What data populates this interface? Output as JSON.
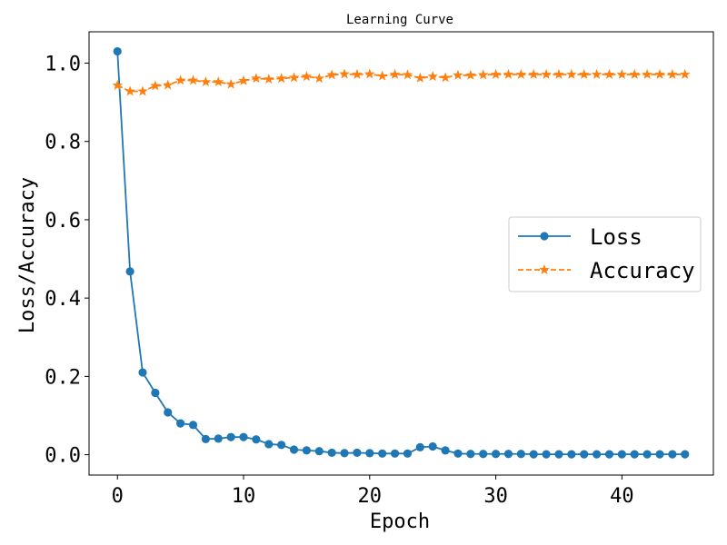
{
  "chart_data": {
    "type": "line",
    "title": "Learning Curve",
    "xlabel": "Epoch",
    "ylabel": "Loss/Accuracy",
    "xlim": [
      -2.25,
      47.25
    ],
    "ylim": [
      -0.052,
      1.08
    ],
    "xticks": [
      0,
      10,
      20,
      30,
      40
    ],
    "xtick_labels": [
      "0",
      "10",
      "20",
      "30",
      "40"
    ],
    "yticks": [
      0.0,
      0.2,
      0.4,
      0.6,
      0.8,
      1.0
    ],
    "ytick_labels": [
      "0.0",
      "0.2",
      "0.4",
      "0.6",
      "0.8",
      "1.0"
    ],
    "grid": false,
    "legend_position": "center-right",
    "x": [
      0,
      1,
      2,
      3,
      4,
      5,
      6,
      7,
      8,
      9,
      10,
      11,
      12,
      13,
      14,
      15,
      16,
      17,
      18,
      19,
      20,
      21,
      22,
      23,
      24,
      25,
      26,
      27,
      28,
      29,
      30,
      31,
      32,
      33,
      34,
      35,
      36,
      37,
      38,
      39,
      40,
      41,
      42,
      43,
      44,
      45
    ],
    "series": [
      {
        "name": "Loss",
        "color": "#1f77b4",
        "linestyle": "solid",
        "marker": "circle",
        "values": [
          1.03,
          0.468,
          0.21,
          0.158,
          0.108,
          0.08,
          0.076,
          0.04,
          0.041,
          0.045,
          0.045,
          0.039,
          0.027,
          0.025,
          0.013,
          0.011,
          0.009,
          0.005,
          0.004,
          0.005,
          0.004,
          0.003,
          0.003,
          0.003,
          0.019,
          0.021,
          0.011,
          0.003,
          0.002,
          0.002,
          0.002,
          0.002,
          0.002,
          0.001,
          0.001,
          0.001,
          0.001,
          0.001,
          0.001,
          0.001,
          0.001,
          0.001,
          0.001,
          0.001,
          0.001,
          0.001
        ]
      },
      {
        "name": "Accuracy",
        "color": "#ff7f0e",
        "linestyle": "dashed",
        "marker": "star",
        "values": [
          0.943,
          0.928,
          0.928,
          0.942,
          0.944,
          0.956,
          0.956,
          0.952,
          0.952,
          0.946,
          0.955,
          0.961,
          0.959,
          0.961,
          0.963,
          0.966,
          0.961,
          0.97,
          0.972,
          0.971,
          0.972,
          0.967,
          0.971,
          0.97,
          0.962,
          0.966,
          0.963,
          0.969,
          0.969,
          0.97,
          0.971,
          0.971,
          0.971,
          0.971,
          0.971,
          0.971,
          0.971,
          0.971,
          0.971,
          0.971,
          0.971,
          0.971,
          0.971,
          0.971,
          0.971,
          0.971
        ]
      }
    ]
  }
}
